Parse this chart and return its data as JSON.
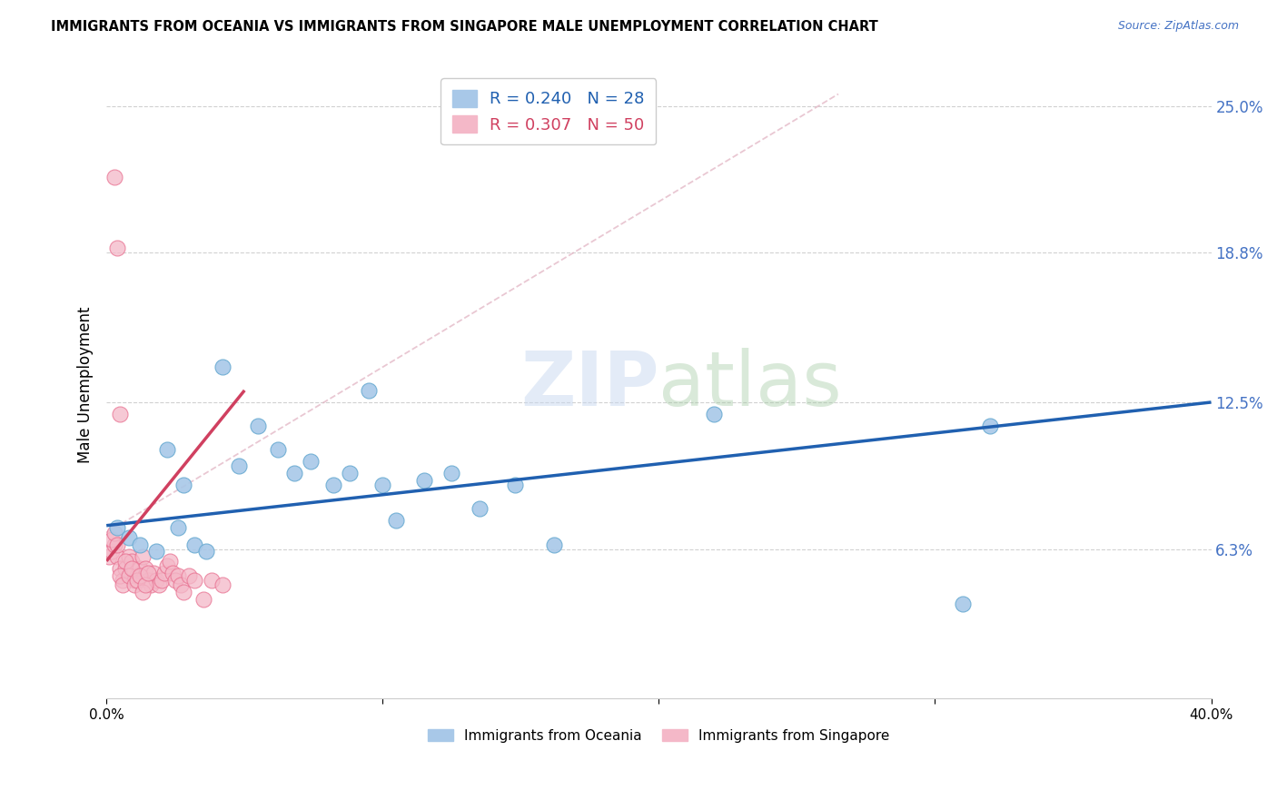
{
  "title": "IMMIGRANTS FROM OCEANIA VS IMMIGRANTS FROM SINGAPORE MALE UNEMPLOYMENT CORRELATION CHART",
  "source": "Source: ZipAtlas.com",
  "ylabel": "Male Unemployment",
  "xlim": [
    0.0,
    0.4
  ],
  "ylim": [
    0.0,
    0.265
  ],
  "ytick_vals": [
    0.063,
    0.125,
    0.188,
    0.25
  ],
  "ytick_labels": [
    "6.3%",
    "12.5%",
    "18.8%",
    "25.0%"
  ],
  "xtick_vals": [
    0.0,
    0.1,
    0.2,
    0.3,
    0.4
  ],
  "xtick_labels": [
    "0.0%",
    "",
    "",
    "",
    "40.0%"
  ],
  "legend1_r": "0.240",
  "legend1_n": "28",
  "legend2_r": "0.307",
  "legend2_n": "50",
  "blue_scatter_color": "#a8c8e8",
  "blue_edge_color": "#6aabd2",
  "pink_scatter_color": "#f4b8c8",
  "pink_edge_color": "#e87090",
  "blue_line_color": "#2060b0",
  "pink_line_color": "#d04060",
  "diag_line_color": "#e0b0c0",
  "watermark": "ZIPatlas",
  "oceania_x": [
    0.004,
    0.008,
    0.012,
    0.018,
    0.022,
    0.026,
    0.028,
    0.032,
    0.036,
    0.042,
    0.048,
    0.055,
    0.062,
    0.068,
    0.074,
    0.082,
    0.088,
    0.095,
    0.1,
    0.105,
    0.115,
    0.125,
    0.135,
    0.148,
    0.162,
    0.22,
    0.32,
    0.31
  ],
  "oceania_y": [
    0.072,
    0.068,
    0.065,
    0.062,
    0.105,
    0.072,
    0.09,
    0.065,
    0.062,
    0.14,
    0.098,
    0.115,
    0.105,
    0.095,
    0.1,
    0.09,
    0.095,
    0.13,
    0.09,
    0.075,
    0.092,
    0.095,
    0.08,
    0.09,
    0.065,
    0.12,
    0.115,
    0.04
  ],
  "singapore_x": [
    0.001,
    0.002,
    0.003,
    0.004,
    0.005,
    0.006,
    0.007,
    0.008,
    0.009,
    0.01,
    0.011,
    0.012,
    0.013,
    0.014,
    0.015,
    0.016,
    0.017,
    0.018,
    0.019,
    0.02,
    0.021,
    0.022,
    0.023,
    0.024,
    0.025,
    0.026,
    0.027,
    0.028,
    0.03,
    0.032,
    0.035,
    0.038,
    0.042,
    0.002,
    0.003,
    0.004,
    0.005,
    0.006,
    0.007,
    0.008,
    0.009,
    0.01,
    0.011,
    0.012,
    0.013,
    0.014,
    0.015,
    0.003,
    0.004,
    0.005
  ],
  "singapore_y": [
    0.06,
    0.062,
    0.065,
    0.06,
    0.055,
    0.05,
    0.055,
    0.06,
    0.058,
    0.05,
    0.052,
    0.055,
    0.06,
    0.055,
    0.05,
    0.048,
    0.053,
    0.05,
    0.048,
    0.05,
    0.053,
    0.056,
    0.058,
    0.053,
    0.05,
    0.052,
    0.048,
    0.045,
    0.052,
    0.05,
    0.042,
    0.05,
    0.048,
    0.067,
    0.07,
    0.065,
    0.052,
    0.048,
    0.058,
    0.052,
    0.055,
    0.048,
    0.05,
    0.052,
    0.045,
    0.048,
    0.053,
    0.22,
    0.19,
    0.12
  ],
  "blue_trend_x": [
    0.0,
    0.4
  ],
  "blue_trend_y": [
    0.073,
    0.125
  ],
  "pink_trend_x": [
    0.0,
    0.05
  ],
  "pink_trend_y": [
    0.058,
    0.13
  ]
}
